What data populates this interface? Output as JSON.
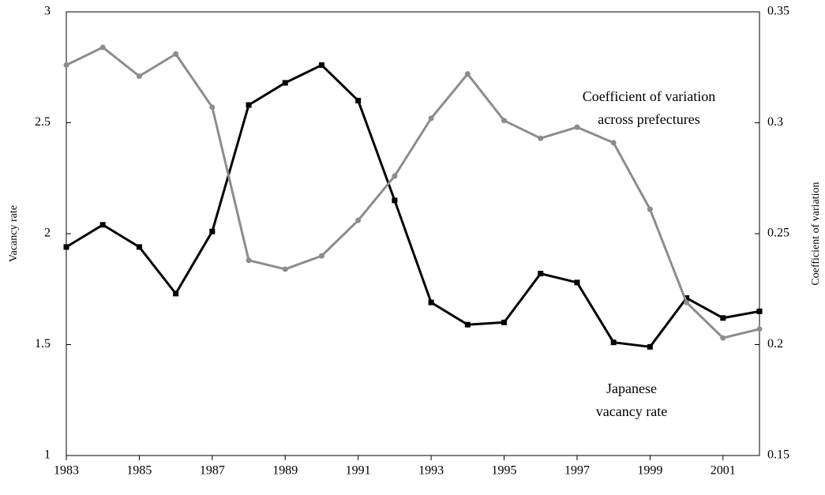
{
  "chart_data": {
    "type": "line",
    "x": [
      1983,
      1984,
      1985,
      1986,
      1987,
      1988,
      1989,
      1990,
      1991,
      1992,
      1993,
      1994,
      1995,
      1996,
      1997,
      1998,
      1999,
      2000,
      2001,
      2002
    ],
    "xlim": [
      1983,
      2002
    ],
    "xticks": [
      1983,
      1985,
      1987,
      1989,
      1991,
      1993,
      1995,
      1997,
      1999,
      2001
    ],
    "ylim": [
      1,
      3
    ],
    "yticks": [
      1,
      1.5,
      2,
      2.5,
      3
    ],
    "y2lim": [
      0.15,
      0.35
    ],
    "y2ticks": [
      0.15,
      0.2,
      0.25,
      0.3,
      0.35
    ],
    "ylabel": "Vacancy rate",
    "y2label": "Coefficient of variation",
    "series": [
      {
        "name": "Japanese vacancy rate",
        "color": "#000000",
        "marker": "square",
        "values": [
          1.94,
          2.04,
          1.94,
          1.73,
          2.01,
          2.58,
          2.68,
          2.76,
          2.6,
          2.15,
          1.69,
          1.59,
          1.6,
          1.82,
          1.78,
          1.51,
          1.49,
          1.71,
          1.62,
          1.65
        ]
      },
      {
        "name": "Coefficient of variation across prefectures",
        "color": "#8c8c8c",
        "marker": "circle",
        "axis": "y2",
        "values": [
          0.326,
          0.334,
          0.321,
          0.331,
          0.307,
          0.238,
          0.234,
          0.24,
          0.256,
          0.276,
          0.302,
          0.322,
          0.301,
          0.293,
          0.298,
          0.291,
          0.261,
          0.219,
          0.203,
          0.207
        ]
      }
    ],
    "annotations": [
      [
        "Coefficient of variation",
        "across prefectures"
      ],
      [
        "Japanese",
        "vacancy rate"
      ]
    ]
  }
}
